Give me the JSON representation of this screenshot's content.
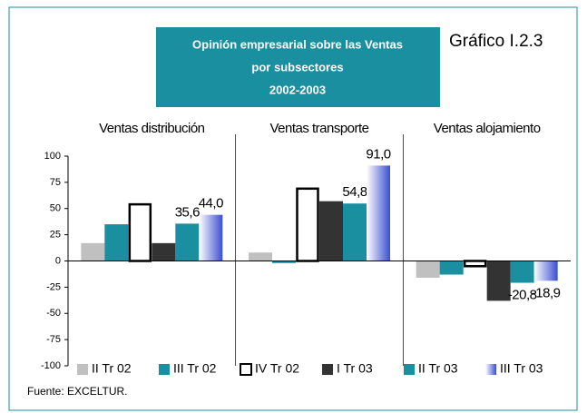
{
  "chart_data": {
    "type": "bar",
    "label": "Gráfico I.2.3",
    "title": [
      "Opinión empresarial sobre las Ventas",
      "por subsectores",
      "2002-2003"
    ],
    "source": "Fuente: EXCELTUR.",
    "categories": [
      "Ventas distribución",
      "Ventas transporte",
      "Ventas alojamiento"
    ],
    "ylim": [
      -100,
      100
    ],
    "yticks": [
      100,
      75,
      50,
      25,
      0,
      -25,
      -50,
      -75,
      -100
    ],
    "series": [
      {
        "name": "II Tr 02",
        "color": "#c0c0c0",
        "values": [
          17,
          8,
          -16
        ]
      },
      {
        "name": "III Tr 02",
        "color": "#1a8fa0",
        "values": [
          35,
          -2,
          -13
        ]
      },
      {
        "name": "IV Tr 02",
        "color": "#ffffff",
        "edgecolor": "#000000",
        "values": [
          54,
          69,
          -5
        ]
      },
      {
        "name": "I Tr 03",
        "color": "#333333",
        "values": [
          17,
          57,
          -38
        ]
      },
      {
        "name": "II Tr 03",
        "color": "#1a8fa0",
        "values": [
          35.6,
          54.8,
          -20.8
        ],
        "value_labels": [
          "35,6",
          "54,8",
          "-20,8"
        ]
      },
      {
        "name": "III Tr 03",
        "color": "#3a4fd0",
        "gradient": true,
        "values": [
          44.0,
          91.0,
          -18.9
        ],
        "value_labels": [
          "44,0",
          "91,0",
          "-18,9"
        ]
      }
    ]
  }
}
